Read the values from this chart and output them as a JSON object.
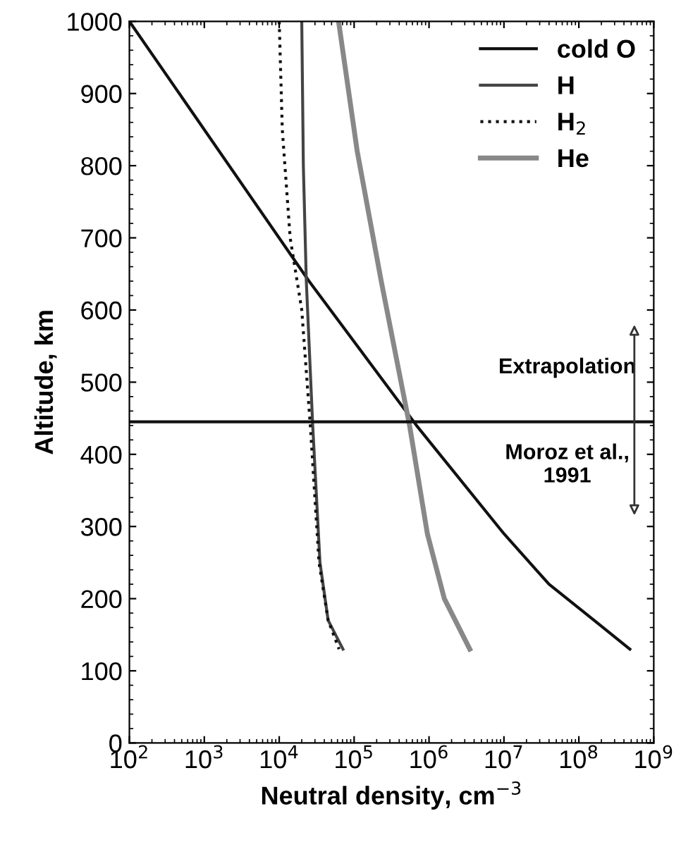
{
  "chart_data": {
    "type": "line",
    "xlabel": "Neutral density, cm$^{−3}$",
    "ylabel": "Altitude, km",
    "log": "x",
    "xlim": [
      100,
      1000000000
    ],
    "ylim": [
      0,
      1000
    ],
    "xticks": [
      {
        "value": 100,
        "label": "10$^{2}$"
      },
      {
        "value": 1000,
        "label": "10$^{3}$"
      },
      {
        "value": 10000,
        "label": "10$^{4}$"
      },
      {
        "value": 100000,
        "label": "10$^{5}$"
      },
      {
        "value": 1000000,
        "label": "10$^{6}$"
      },
      {
        "value": 10000000,
        "label": "10$^{7}$"
      },
      {
        "value": 100000000,
        "label": "10$^{8}$"
      },
      {
        "value": 1000000000,
        "label": "10$^{9}$"
      }
    ],
    "yticks": [
      0,
      100,
      200,
      300,
      400,
      500,
      600,
      700,
      800,
      900,
      1000
    ],
    "grid": false,
    "legend": "top right",
    "marker": "none",
    "ref_lines": [
      {
        "axis": "y",
        "value": 445,
        "color": "#111111",
        "line_style": "solid"
      }
    ],
    "annotations": [
      "Extrapolation",
      "Moroz et al.,\n1991"
    ],
    "series": [
      {
        "name": "cold O",
        "color": "#111111",
        "line_style": "solid",
        "x": [
          100,
          25000,
          680000,
          10000000,
          40000000,
          160000000,
          480000000
        ],
        "values": [
          1000,
          640,
          440,
          290,
          220,
          170,
          130
        ]
      },
      {
        "name": "H",
        "color": "#444444",
        "line_style": "solid",
        "x": [
          20000,
          21000,
          23000,
          28000,
          35000,
          45000,
          71000
        ],
        "values": [
          1000,
          800,
          640,
          440,
          250,
          170,
          130
        ]
      },
      {
        "name": "H$_{2}$",
        "color": "#111111",
        "line_style": "dotted",
        "x": [
          10000,
          11000,
          14000,
          20000,
          26000,
          34000,
          45000,
          63000
        ],
        "values": [
          1000,
          850,
          700,
          600,
          440,
          250,
          170,
          130
        ]
      },
      {
        "name": "He",
        "color": "#888888",
        "line_style": "solid",
        "x": [
          62000,
          110000,
          230000,
          550000,
          950000,
          1600000,
          3500000
        ],
        "values": [
          1000,
          820,
          640,
          440,
          290,
          200,
          130
        ]
      }
    ]
  }
}
